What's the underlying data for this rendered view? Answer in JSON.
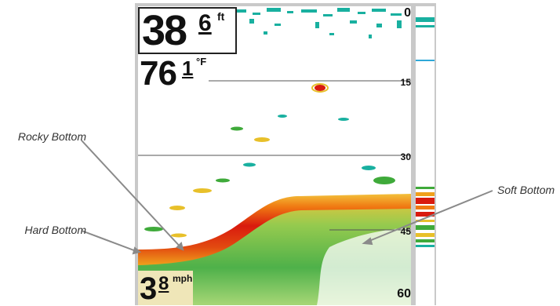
{
  "callouts": {
    "rocky_bottom": "Rocky Bottom",
    "hard_bottom": "Hard Bottom",
    "soft_bottom": "Soft Bottom"
  },
  "display": {
    "depth": {
      "whole": "38",
      "tenth": "6",
      "unit": "ft"
    },
    "temperature": {
      "whole": "76",
      "tenth": "1",
      "unit": "°F"
    },
    "speed": {
      "whole": "3",
      "tenth": "8",
      "unit": "mph"
    }
  },
  "depth_scale": {
    "labels": [
      "0",
      "15",
      "30",
      "45",
      "60"
    ]
  },
  "colors": {
    "bottom_hard": "#d91a0e",
    "bottom_mid": "#f07a12",
    "return_strong": "#e8c02a",
    "return_green": "#3faa3a",
    "return_teal": "#19b0a0",
    "frame": "#c9c9c9"
  }
}
